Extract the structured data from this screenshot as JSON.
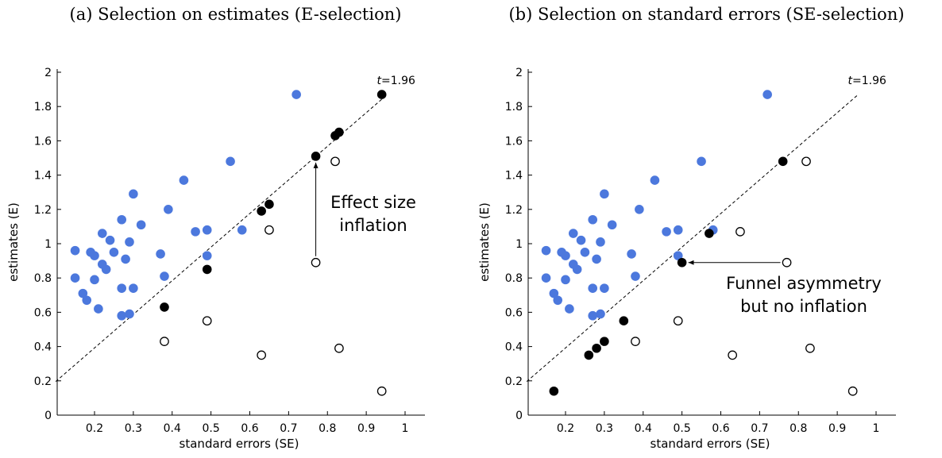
{
  "chart_data": [
    {
      "type": "scatter",
      "title": "(a) Selection on estimates (E-selection)",
      "xlabel": "standard errors (SE)",
      "ylabel": "estimates (E)",
      "xlim": [
        0.1,
        1.05
      ],
      "ylim": [
        0,
        2.05
      ],
      "xticks": [
        "0.2",
        "0.3",
        "0.4",
        "0.5",
        "0.6",
        "0.7",
        "0.8",
        "0.9",
        "1"
      ],
      "yticks": [
        "0",
        "0.2",
        "0.4",
        "0.6",
        "0.8",
        "1",
        "1.2",
        "1.4",
        "1.6",
        "1.8",
        "2"
      ],
      "grid": false,
      "reference_line": {
        "label": "t=1.96",
        "label_t": "t",
        "label_value": "=1.96",
        "slope": 1.96
      },
      "series": [
        {
          "style": "blue-filled",
          "color": "#4c78dd",
          "points": [
            [
              0.15,
              0.96
            ],
            [
              0.15,
              0.8
            ],
            [
              0.17,
              0.71
            ],
            [
              0.18,
              0.67
            ],
            [
              0.19,
              0.95
            ],
            [
              0.2,
              0.93
            ],
            [
              0.2,
              0.79
            ],
            [
              0.21,
              0.62
            ],
            [
              0.22,
              1.06
            ],
            [
              0.22,
              0.88
            ],
            [
              0.23,
              0.85
            ],
            [
              0.24,
              1.02
            ],
            [
              0.25,
              0.95
            ],
            [
              0.27,
              0.58
            ],
            [
              0.27,
              0.74
            ],
            [
              0.27,
              1.14
            ],
            [
              0.28,
              0.91
            ],
            [
              0.29,
              0.59
            ],
            [
              0.29,
              1.01
            ],
            [
              0.3,
              0.74
            ],
            [
              0.3,
              1.29
            ],
            [
              0.32,
              1.11
            ],
            [
              0.37,
              0.94
            ],
            [
              0.38,
              0.81
            ],
            [
              0.39,
              1.2
            ],
            [
              0.43,
              1.37
            ],
            [
              0.46,
              1.07
            ],
            [
              0.49,
              1.08
            ],
            [
              0.49,
              0.93
            ],
            [
              0.55,
              1.48
            ],
            [
              0.58,
              1.08
            ],
            [
              0.72,
              1.87
            ]
          ]
        },
        {
          "style": "black-filled",
          "color": "#000000",
          "points": [
            [
              0.38,
              0.63
            ],
            [
              0.49,
              0.85
            ],
            [
              0.63,
              1.19
            ],
            [
              0.65,
              1.23
            ],
            [
              0.77,
              1.51
            ],
            [
              0.82,
              1.63
            ],
            [
              0.83,
              1.65
            ],
            [
              0.94,
              1.87
            ]
          ]
        },
        {
          "style": "open",
          "color": "#000000",
          "points": [
            [
              0.38,
              0.43
            ],
            [
              0.49,
              0.55
            ],
            [
              0.63,
              0.35
            ],
            [
              0.65,
              1.08
            ],
            [
              0.77,
              0.89
            ],
            [
              0.82,
              1.48
            ],
            [
              0.83,
              0.39
            ],
            [
              0.94,
              0.14
            ]
          ]
        }
      ],
      "annotation": {
        "lines": [
          "Effect size",
          "inflation"
        ],
        "arrow_from": [
          0.77,
          0.89
        ],
        "arrow_to": [
          0.77,
          1.51
        ]
      }
    },
    {
      "type": "scatter",
      "title": "(b) Selection on standard errors (SE-selection)",
      "xlabel": "standard errors (SE)",
      "ylabel": "estimates (E)",
      "xlim": [
        0.1,
        1.05
      ],
      "ylim": [
        0,
        2.05
      ],
      "xticks": [
        "0.2",
        "0.3",
        "0.4",
        "0.5",
        "0.6",
        "0.7",
        "0.8",
        "0.9",
        "1"
      ],
      "yticks": [
        "0",
        "0.2",
        "0.4",
        "0.6",
        "0.8",
        "1",
        "1.2",
        "1.4",
        "1.6",
        "1.8",
        "2"
      ],
      "grid": false,
      "reference_line": {
        "label": "t=1.96",
        "label_t": "t",
        "label_value": "=1.96",
        "slope": 1.96
      },
      "series": [
        {
          "style": "blue-filled",
          "color": "#4c78dd",
          "points": [
            [
              0.15,
              0.96
            ],
            [
              0.15,
              0.8
            ],
            [
              0.17,
              0.71
            ],
            [
              0.18,
              0.67
            ],
            [
              0.19,
              0.95
            ],
            [
              0.2,
              0.93
            ],
            [
              0.2,
              0.79
            ],
            [
              0.21,
              0.62
            ],
            [
              0.22,
              1.06
            ],
            [
              0.22,
              0.88
            ],
            [
              0.23,
              0.85
            ],
            [
              0.24,
              1.02
            ],
            [
              0.25,
              0.95
            ],
            [
              0.27,
              0.58
            ],
            [
              0.27,
              0.74
            ],
            [
              0.27,
              1.14
            ],
            [
              0.28,
              0.91
            ],
            [
              0.29,
              0.59
            ],
            [
              0.29,
              1.01
            ],
            [
              0.3,
              0.74
            ],
            [
              0.3,
              1.29
            ],
            [
              0.32,
              1.11
            ],
            [
              0.37,
              0.94
            ],
            [
              0.38,
              0.81
            ],
            [
              0.39,
              1.2
            ],
            [
              0.43,
              1.37
            ],
            [
              0.46,
              1.07
            ],
            [
              0.49,
              1.08
            ],
            [
              0.49,
              0.93
            ],
            [
              0.55,
              1.48
            ],
            [
              0.58,
              1.08
            ],
            [
              0.72,
              1.87
            ]
          ]
        },
        {
          "style": "black-filled",
          "color": "#000000",
          "points": [
            [
              0.17,
              0.14
            ],
            [
              0.26,
              0.35
            ],
            [
              0.28,
              0.39
            ],
            [
              0.3,
              0.43
            ],
            [
              0.35,
              0.55
            ],
            [
              0.5,
              0.89
            ],
            [
              0.57,
              1.06
            ],
            [
              0.76,
              1.48
            ]
          ]
        },
        {
          "style": "open",
          "color": "#000000",
          "points": [
            [
              0.38,
              0.43
            ],
            [
              0.49,
              0.55
            ],
            [
              0.63,
              0.35
            ],
            [
              0.65,
              1.07
            ],
            [
              0.77,
              0.89
            ],
            [
              0.82,
              1.48
            ],
            [
              0.83,
              0.39
            ],
            [
              0.94,
              0.14
            ]
          ]
        }
      ],
      "annotation": {
        "lines": [
          "Funnel asymmetry",
          "but no inflation"
        ],
        "arrow_from": [
          0.77,
          0.89
        ],
        "arrow_to": [
          0.5,
          0.89
        ]
      }
    }
  ]
}
